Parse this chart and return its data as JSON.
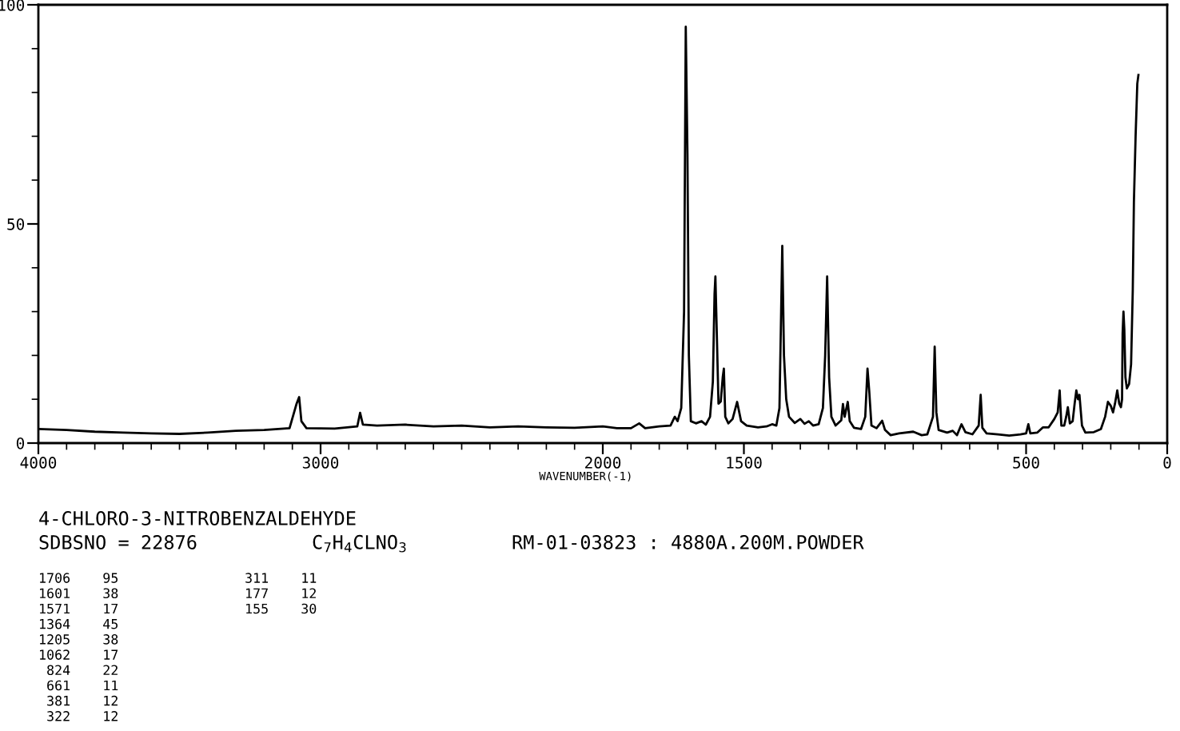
{
  "chart_data": {
    "type": "line",
    "title": "4-CHLORO-3-NITROBENZALDEHYDE",
    "subtitle": "SDBSNO = 22876",
    "xlabel": "WAVENUMBER(-1)",
    "annotations": [
      "C$_{7}$H$_{4}$CLNO$_{3}$",
      "RM-01-03823 : 4880A.200M.POWDER",
      "1706    95",
      "1601    38",
      "1571    17",
      "1364    45",
      "1205    38",
      "1062    17",
      " 824    22",
      " 661    11",
      " 381    12",
      " 322    12",
      " 311    11",
      " 177    12",
      " 155    30"
    ],
    "xlim": [
      4000,
      0
    ],
    "xticks": [
      4000,
      3000,
      2000,
      1500,
      500,
      0
    ],
    "ylim": [
      0,
      100
    ],
    "yticks": [
      0,
      50,
      100
    ],
    "grid": false,
    "legend": false,
    "marker": "none",
    "line_style": "solid",
    "series": [
      {
        "color": "#000000",
        "x": [
          4000,
          3900,
          3800,
          3700,
          3600,
          3500,
          3400,
          3300,
          3200,
          3110,
          3085,
          3076,
          3068,
          3050,
          2950,
          2870,
          2860,
          2850,
          2800,
          2700,
          2600,
          2500,
          2400,
          2300,
          2200,
          2100,
          2000,
          1950,
          1900,
          1871,
          1850,
          1800,
          1760,
          1745,
          1735,
          1722,
          1712,
          1706,
          1700,
          1695,
          1688,
          1670,
          1650,
          1635,
          1620,
          1610,
          1604,
          1601,
          1596,
          1590,
          1582,
          1575,
          1571,
          1566,
          1555,
          1540,
          1524,
          1510,
          1490,
          1450,
          1420,
          1400,
          1385,
          1374,
          1368,
          1364,
          1358,
          1350,
          1340,
          1320,
          1300,
          1285,
          1270,
          1255,
          1235,
          1220,
          1212,
          1205,
          1198,
          1190,
          1175,
          1155,
          1149,
          1143,
          1132,
          1125,
          1110,
          1085,
          1070,
          1062,
          1056,
          1048,
          1030,
          1010,
          1000,
          980,
          950,
          900,
          870,
          850,
          830,
          824,
          818,
          810,
          780,
          760,
          745,
          729,
          715,
          690,
          668,
          661,
          655,
          640,
          600,
          560,
          520,
          500,
          492,
          485,
          460,
          440,
          420,
          400,
          388,
          381,
          375,
          365,
          358,
          352,
          345,
          335,
          328,
          322,
          316,
          311,
          302,
          290,
          260,
          235,
          220,
          210,
          200,
          192,
          185,
          177,
          170,
          164,
          160,
          158,
          155,
          152,
          148,
          143,
          135,
          128,
          122,
          118,
          112,
          106,
          102
        ],
        "values": [
          3.2,
          3.0,
          2.6,
          2.4,
          2.2,
          2.1,
          2.4,
          2.8,
          3.0,
          3.4,
          9,
          10.5,
          5,
          3.4,
          3.3,
          3.8,
          6.9,
          4.2,
          4.0,
          4.2,
          3.8,
          4.0,
          3.6,
          3.8,
          3.6,
          3.5,
          3.8,
          3.4,
          3.4,
          4.5,
          3.4,
          3.8,
          4.0,
          6,
          5,
          8,
          30,
          95,
          66,
          20,
          5,
          4.5,
          5,
          4.2,
          6,
          14,
          34,
          38,
          25,
          9,
          9.5,
          15,
          17,
          6,
          4.5,
          5.5,
          9.4,
          5,
          4,
          3.6,
          3.8,
          4.3,
          4,
          8,
          30,
          45,
          20,
          10,
          6,
          4.6,
          5.5,
          4.4,
          5,
          4,
          4.3,
          8,
          20,
          38,
          15,
          6,
          4,
          5.2,
          8.9,
          6,
          9.4,
          5,
          3.5,
          3.2,
          6,
          17,
          12,
          4,
          3.4,
          5.1,
          3,
          1.8,
          2.2,
          2.6,
          1.8,
          2.0,
          6,
          22,
          7,
          3,
          2.4,
          2.8,
          1.8,
          4.3,
          2.5,
          2.0,
          4,
          11,
          3.5,
          2.2,
          2.0,
          1.7,
          2.0,
          2.2,
          4.3,
          2.2,
          2.4,
          3.6,
          3.6,
          5.5,
          7,
          12,
          4,
          4,
          6,
          8.2,
          4.5,
          5,
          9,
          12,
          10,
          11,
          4,
          2.4,
          2.5,
          3.2,
          6,
          9.4,
          8.5,
          7,
          9,
          12,
          9,
          8.2,
          10,
          25,
          30,
          26,
          15,
          12.5,
          13.5,
          18,
          35,
          55,
          70,
          82,
          84
        ]
      }
    ]
  }
}
